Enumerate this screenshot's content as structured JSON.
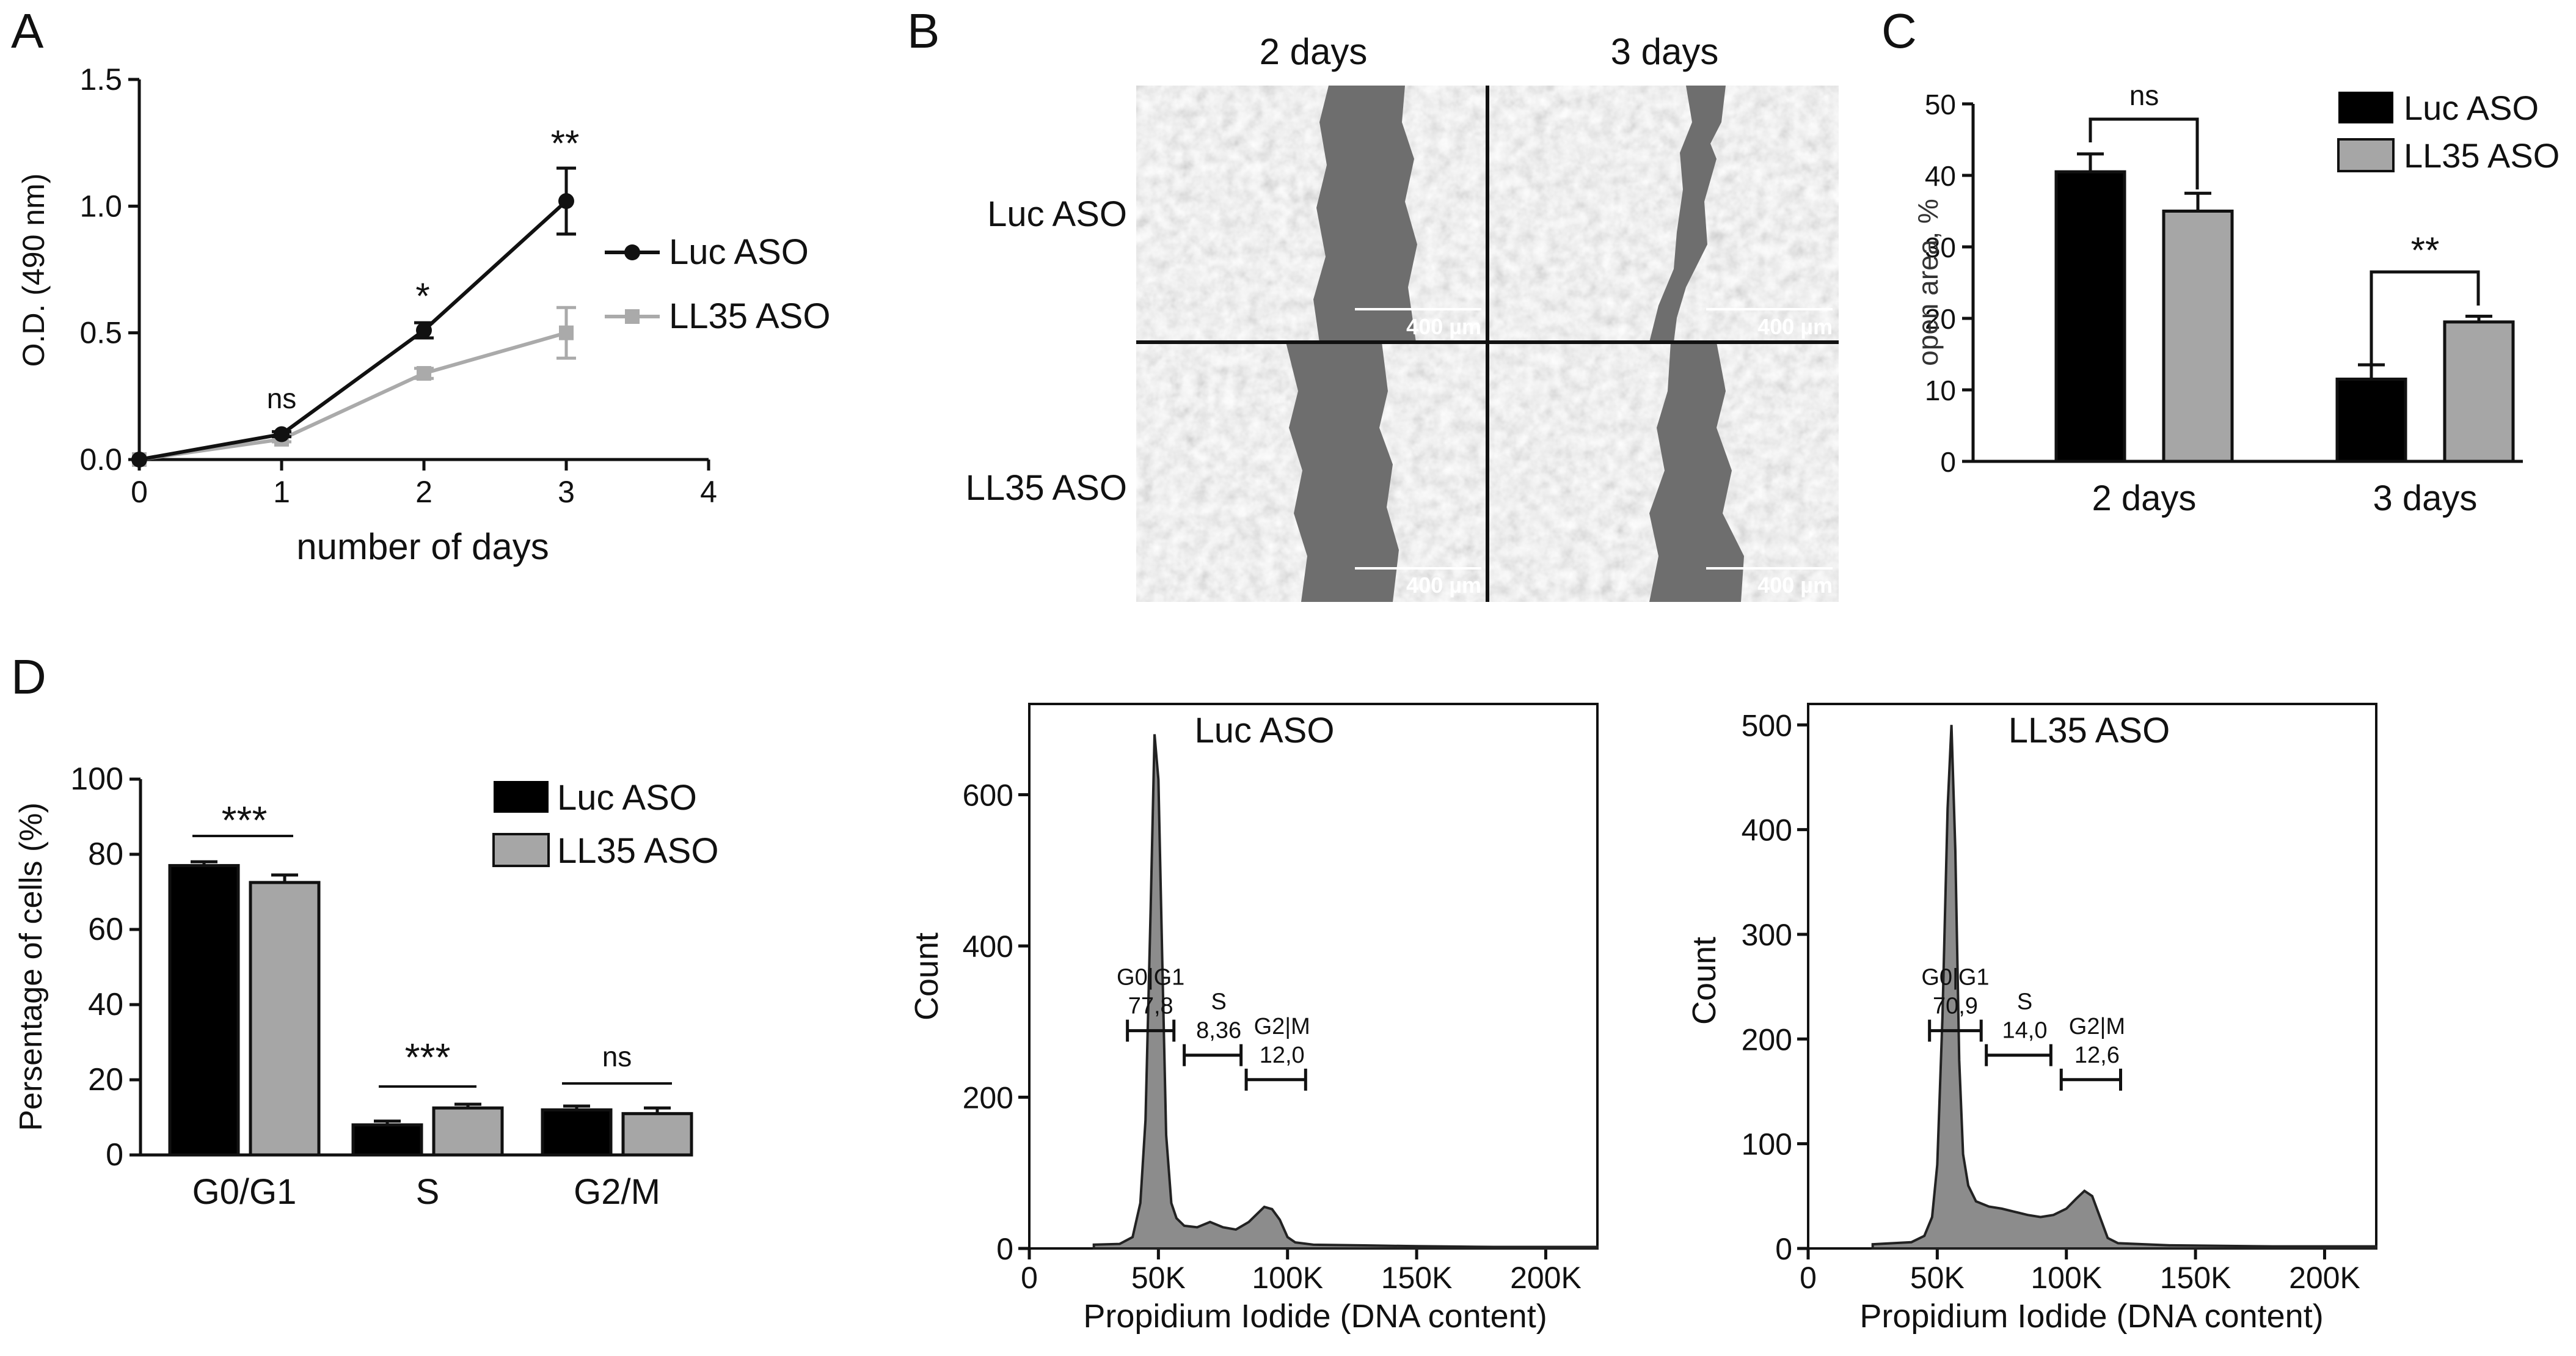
{
  "panel_labels": {
    "a": "A",
    "b": "B",
    "c": "C",
    "d": "D"
  },
  "chart_data": [
    {
      "panel": "A",
      "type": "line",
      "xlabel": "number of days",
      "ylabel": "O.D. (490 nm)",
      "xlim": [
        0,
        4
      ],
      "ylim": [
        0,
        1.5
      ],
      "xticks": [
        "0",
        "1",
        "2",
        "3",
        "4"
      ],
      "yticks": [
        "0.0",
        "0.5",
        "1.0",
        "1.5"
      ],
      "x": [
        0,
        1,
        2,
        3
      ],
      "series": [
        {
          "name": "Luc ASO",
          "color": "#111111",
          "marker": "circle",
          "values": [
            0.0,
            0.1,
            0.51,
            1.02
          ],
          "err": [
            0.0,
            0.01,
            0.03,
            0.13
          ]
        },
        {
          "name": "LL35 ASO",
          "color": "#aaaaaa",
          "marker": "square",
          "values": [
            0.0,
            0.08,
            0.34,
            0.5
          ],
          "err": [
            0.0,
            0.01,
            0.02,
            0.1
          ]
        }
      ],
      "annotations": [
        "ns",
        "*",
        "**"
      ],
      "legend": "right"
    },
    {
      "panel": "C",
      "type": "bar",
      "ylabel": "open area, %",
      "ylim": [
        0,
        50
      ],
      "yticks": [
        "0",
        "10",
        "20",
        "30",
        "40",
        "50"
      ],
      "categories": [
        "2 days",
        "3 days"
      ],
      "series": [
        {
          "name": "Luc ASO",
          "color": "#000000",
          "values": [
            40.5,
            11.5
          ],
          "err": [
            2.5,
            2.0
          ]
        },
        {
          "name": "LL35 ASO",
          "color": "#a6a6a6",
          "values": [
            35.0,
            19.5
          ],
          "err": [
            2.5,
            0.8
          ]
        }
      ],
      "annotations": [
        "ns",
        "**"
      ],
      "legend": "top-right"
    },
    {
      "panel": "D",
      "type": "bar",
      "ylabel": "Persentage of cells (%)",
      "ylim": [
        0,
        100
      ],
      "yticks": [
        "0",
        "20",
        "40",
        "60",
        "80",
        "100"
      ],
      "categories": [
        "G0/G1",
        "S",
        "G2/M"
      ],
      "series": [
        {
          "name": "Luc ASO",
          "color": "#000000",
          "values": [
            77.0,
            8.0,
            12.0
          ],
          "err": [
            1.0,
            1.0,
            1.0
          ]
        },
        {
          "name": "LL35 ASO",
          "color": "#a6a6a6",
          "values": [
            72.5,
            12.5,
            11.0
          ],
          "err": [
            2.0,
            1.0,
            1.5
          ]
        }
      ],
      "annotations": [
        "***",
        "***",
        "ns"
      ],
      "legend": "top-right"
    },
    {
      "panel": "D-hist-1",
      "type": "area",
      "title": "Luc ASO",
      "xlabel": "Propidium Iodide (DNA content)",
      "ylabel": "Count",
      "xlim": [
        0,
        220000
      ],
      "ylim": [
        0,
        720
      ],
      "xticks": [
        "0",
        "50K",
        "100K",
        "150K",
        "200K"
      ],
      "yticks": [
        "0",
        "200",
        "400",
        "600"
      ],
      "x": [
        25000,
        35000,
        40000,
        43000,
        45000,
        47000,
        48500,
        50000,
        51500,
        53000,
        55000,
        57000,
        60000,
        65000,
        70000,
        75000,
        80000,
        85000,
        88000,
        91000,
        94000,
        97000,
        100000,
        103000,
        110000,
        130000,
        150000,
        180000,
        220000
      ],
      "y": [
        5,
        6,
        15,
        60,
        170,
        450,
        680,
        620,
        380,
        150,
        60,
        40,
        30,
        28,
        35,
        28,
        25,
        35,
        45,
        55,
        52,
        38,
        15,
        8,
        5,
        4,
        3,
        2,
        2
      ],
      "gates": [
        {
          "label": "G0|G1",
          "value": "77,8",
          "range": [
            38000,
            56000
          ]
        },
        {
          "label": "S",
          "value": "8,36",
          "range": [
            60000,
            82000
          ]
        },
        {
          "label": "G2|M",
          "value": "12,0",
          "range": [
            84000,
            107000
          ]
        }
      ]
    },
    {
      "panel": "D-hist-2",
      "type": "area",
      "title": "LL35 ASO",
      "xlabel": "Propidium Iodide (DNA content)",
      "ylabel": "Count",
      "xlim": [
        0,
        220000
      ],
      "ylim": [
        0,
        520
      ],
      "xticks": [
        "0",
        "50K",
        "100K",
        "150K",
        "200K"
      ],
      "yticks": [
        "0",
        "100",
        "200",
        "300",
        "400",
        "500"
      ],
      "x": [
        25000,
        40000,
        45000,
        48000,
        50000,
        52000,
        54000,
        55500,
        57000,
        58500,
        60000,
        62000,
        65000,
        70000,
        75000,
        80000,
        85000,
        90000,
        95000,
        100000,
        104000,
        107000,
        110000,
        113000,
        116000,
        120000,
        140000,
        180000,
        220000
      ],
      "y": [
        4,
        6,
        12,
        30,
        80,
        220,
        420,
        500,
        380,
        180,
        90,
        60,
        45,
        40,
        38,
        35,
        32,
        30,
        32,
        38,
        48,
        55,
        50,
        30,
        10,
        5,
        3,
        2,
        2
      ],
      "gates": [
        {
          "label": "G0|G1",
          "value": "70,9",
          "range": [
            47000,
            67000
          ]
        },
        {
          "label": "S",
          "value": "14,0",
          "range": [
            69000,
            94000
          ]
        },
        {
          "label": "G2|M",
          "value": "12,6",
          "range": [
            98000,
            121000
          ]
        }
      ]
    }
  ],
  "micrograph": {
    "columns": [
      "2 days",
      "3 days"
    ],
    "rows": [
      "Luc ASO",
      "LL35 ASO"
    ],
    "scale_bar": "400 µm"
  },
  "significance": {
    "a": [
      "ns",
      "*",
      "**"
    ],
    "c": [
      "ns",
      "**"
    ],
    "d": [
      "***",
      "***",
      "ns"
    ]
  }
}
